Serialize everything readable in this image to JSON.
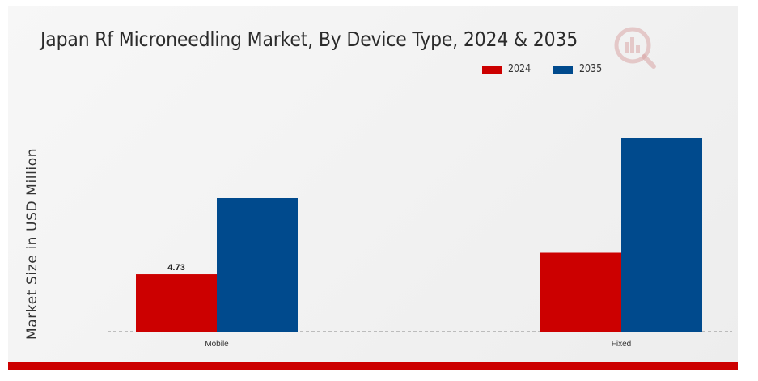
{
  "chart_data": {
    "type": "bar",
    "title": "Japan Rf Microneedling Market, By Device Type, 2024 & 2035",
    "ylabel": "Market Size in USD Million",
    "xlabel": "",
    "categories": [
      "Mobile",
      "Fixed"
    ],
    "series": [
      {
        "name": "2024",
        "color": "#cc0000",
        "values": [
          4.73,
          6.5
        ]
      },
      {
        "name": "2035",
        "color": "#004a8d",
        "values": [
          11.0,
          16.0
        ]
      }
    ],
    "data_labels": [
      {
        "series": 0,
        "category": 0,
        "text": "4.73"
      }
    ],
    "ylim": [
      0,
      20
    ],
    "legend_position": "top-right",
    "grid": false,
    "baseline": "dashed"
  },
  "accent_bar_color": "#cc0000",
  "logo_icon": "market-research-logo-icon"
}
